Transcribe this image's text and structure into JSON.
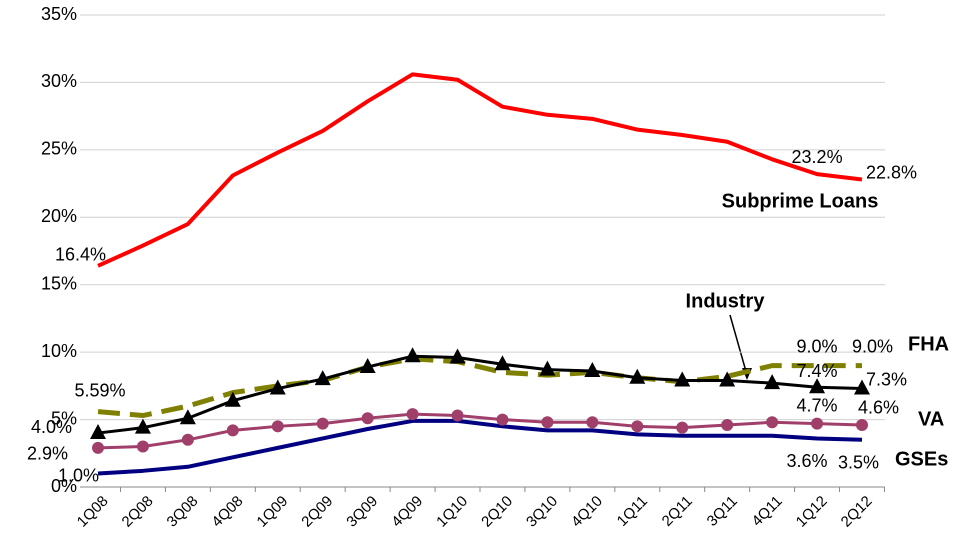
{
  "chart_data": {
    "type": "line",
    "categories": [
      "1Q08",
      "2Q08",
      "3Q08",
      "4Q08",
      "1Q09",
      "2Q09",
      "3Q09",
      "4Q09",
      "1Q10",
      "2Q10",
      "3Q10",
      "4Q10",
      "1Q11",
      "2Q11",
      "3Q11",
      "4Q11",
      "1Q12",
      "2Q12"
    ],
    "ylim": [
      0,
      35
    ],
    "yticks": [
      {
        "value": 0,
        "label": "0%"
      },
      {
        "value": 5,
        "label": "5%"
      },
      {
        "value": 10,
        "label": "10%"
      },
      {
        "value": 15,
        "label": "15%"
      },
      {
        "value": 20,
        "label": "20%"
      },
      {
        "value": 25,
        "label": "25%"
      },
      {
        "value": 30,
        "label": "30%"
      },
      {
        "value": 35,
        "label": "35%"
      }
    ],
    "grid": true,
    "series": [
      {
        "name": "Subprime Loans",
        "color": "#ff0000",
        "marker": "none",
        "values": [
          16.4,
          17.9,
          19.5,
          23.1,
          24.8,
          26.4,
          28.6,
          30.6,
          30.2,
          28.2,
          27.6,
          27.3,
          26.5,
          26.1,
          25.6,
          24.3,
          23.2,
          22.8
        ],
        "value_labels": [
          "16.4%",
          null,
          null,
          null,
          null,
          null,
          null,
          null,
          null,
          null,
          null,
          null,
          null,
          null,
          null,
          null,
          "23.2%",
          "22.8%"
        ]
      },
      {
        "name": "Industry",
        "color": "#000000",
        "marker": "triangle",
        "values": [
          4.0,
          4.4,
          5.1,
          6.4,
          7.3,
          8.0,
          8.9,
          9.7,
          9.6,
          9.1,
          8.7,
          8.6,
          8.1,
          7.9,
          7.9,
          7.7,
          7.4,
          7.3
        ],
        "value_labels": [
          "4.0%",
          null,
          null,
          null,
          null,
          null,
          null,
          null,
          null,
          null,
          null,
          null,
          null,
          null,
          null,
          null,
          "7.4%",
          "7.3%"
        ]
      },
      {
        "name": "FHA",
        "color": "#808000",
        "marker": "none",
        "dashed": true,
        "values": [
          5.59,
          5.3,
          6.0,
          7.0,
          7.5,
          7.9,
          8.9,
          9.5,
          9.3,
          8.5,
          8.3,
          8.5,
          8.1,
          7.8,
          8.2,
          9.0,
          9.0,
          9.0
        ],
        "value_labels": [
          "5.59%",
          null,
          null,
          null,
          null,
          null,
          null,
          null,
          null,
          null,
          null,
          null,
          null,
          null,
          null,
          null,
          "9.0%",
          "9.0%"
        ]
      },
      {
        "name": "VA",
        "color": "#a0406a",
        "marker": "circle",
        "values": [
          2.9,
          3.0,
          3.5,
          4.2,
          4.5,
          4.7,
          5.1,
          5.4,
          5.3,
          5.0,
          4.8,
          4.8,
          4.5,
          4.4,
          4.6,
          4.8,
          4.7,
          4.6
        ],
        "value_labels": [
          "2.9%",
          null,
          null,
          null,
          null,
          null,
          null,
          null,
          null,
          null,
          null,
          null,
          null,
          null,
          null,
          null,
          "4.7%",
          "4.6%"
        ]
      },
      {
        "name": "GSEs",
        "color": "#000080",
        "marker": "none",
        "values": [
          1.0,
          1.2,
          1.5,
          2.2,
          2.9,
          3.6,
          4.3,
          4.9,
          4.9,
          4.5,
          4.2,
          4.2,
          3.9,
          3.8,
          3.8,
          3.8,
          3.6,
          3.5
        ],
        "value_labels": [
          "1.0%",
          null,
          null,
          null,
          null,
          null,
          null,
          null,
          null,
          null,
          null,
          null,
          null,
          null,
          null,
          null,
          "3.6%",
          "3.5%"
        ]
      }
    ]
  }
}
